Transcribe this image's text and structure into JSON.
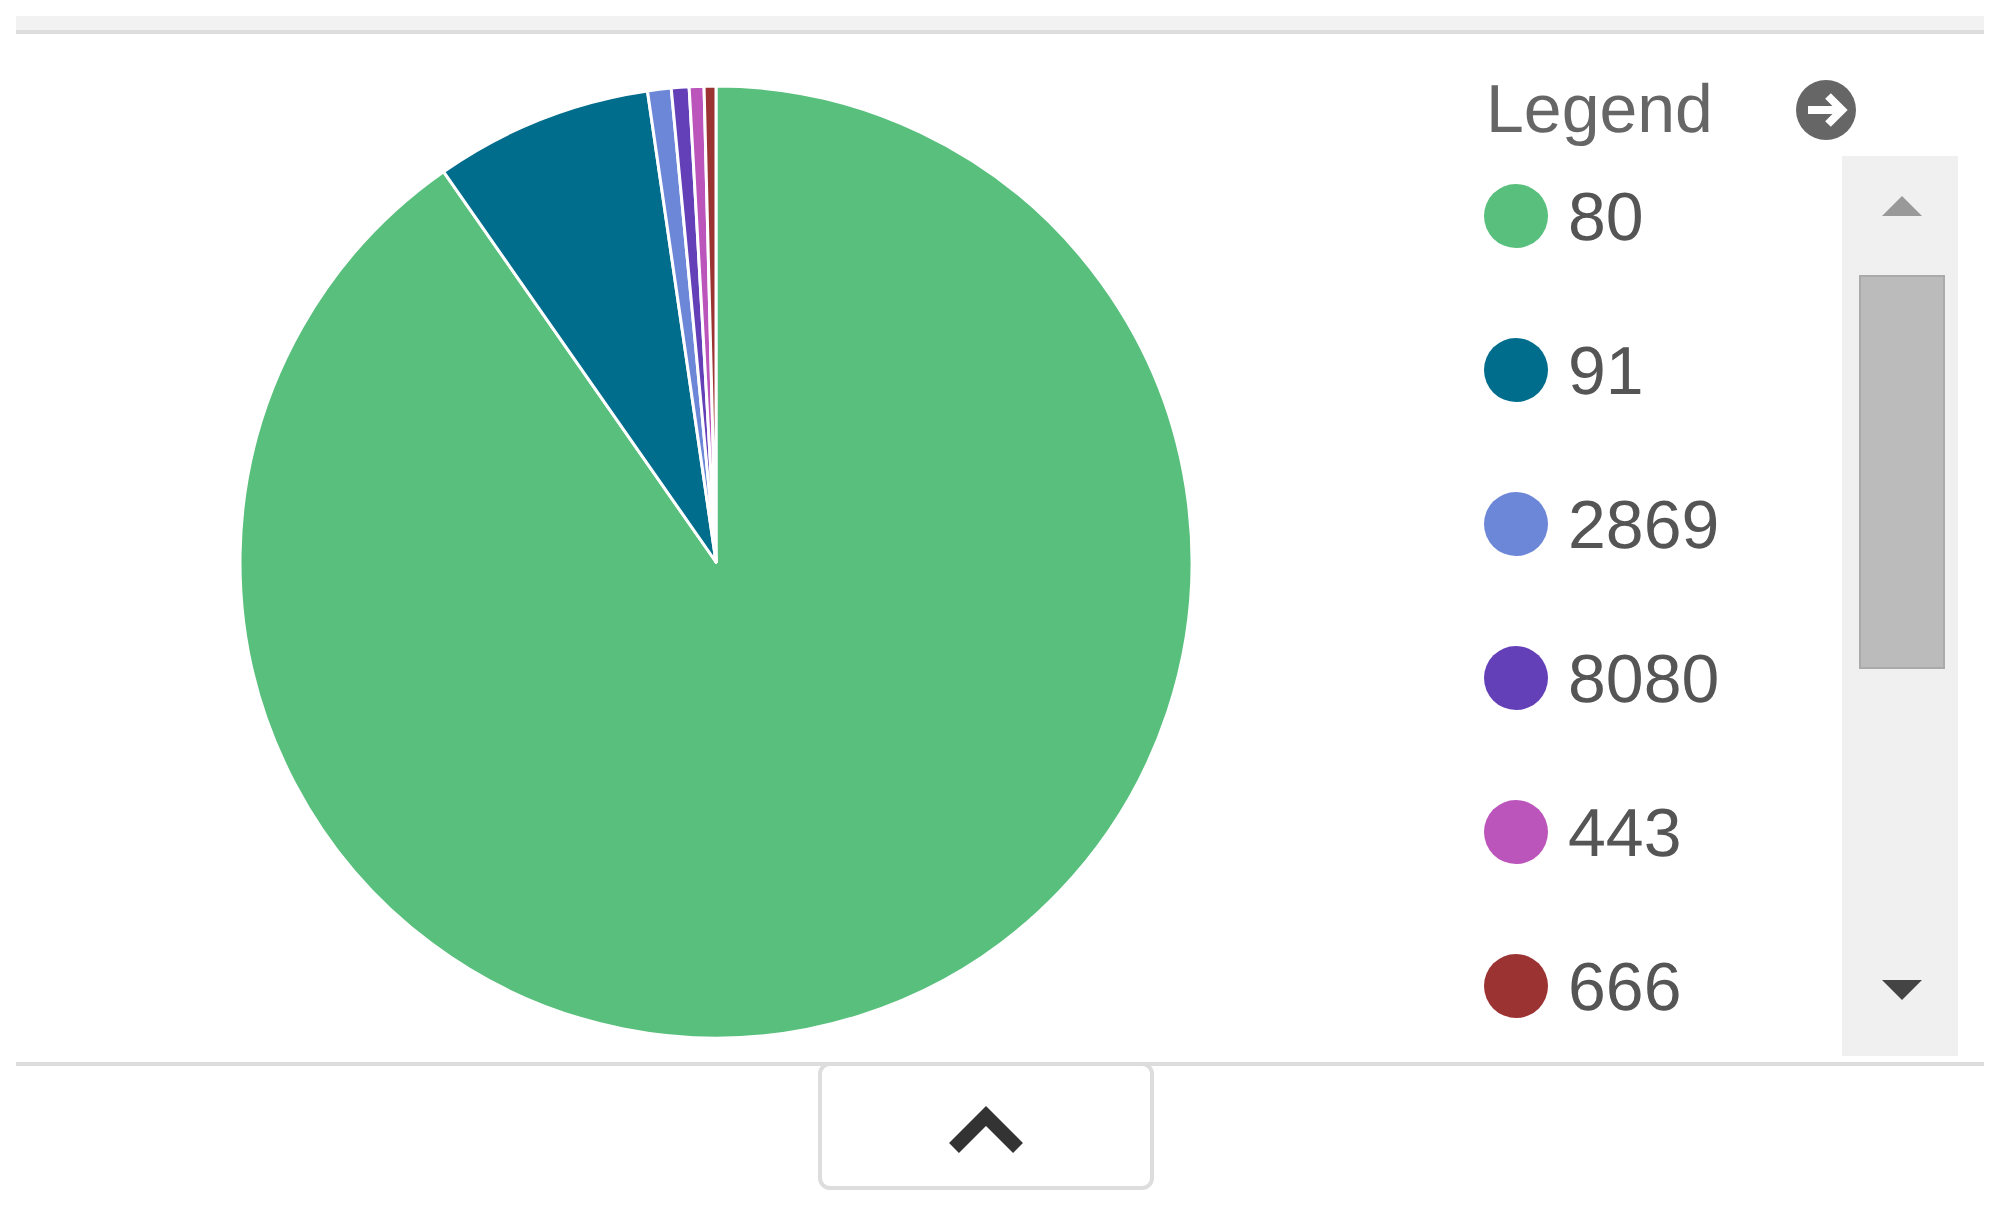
{
  "chart_data": {
    "type": "pie",
    "legend_title": "Legend",
    "legend": "right",
    "categories": [
      "80",
      "91",
      "2869",
      "8080",
      "443",
      "666"
    ],
    "values": [
      90.3,
      7.4,
      0.8,
      0.6,
      0.5,
      0.4
    ],
    "colors": [
      "#58bf7c",
      "#006d8c",
      "#6d87d8",
      "#6440b8",
      "#bb55bb",
      "#9c3333"
    ]
  }
}
